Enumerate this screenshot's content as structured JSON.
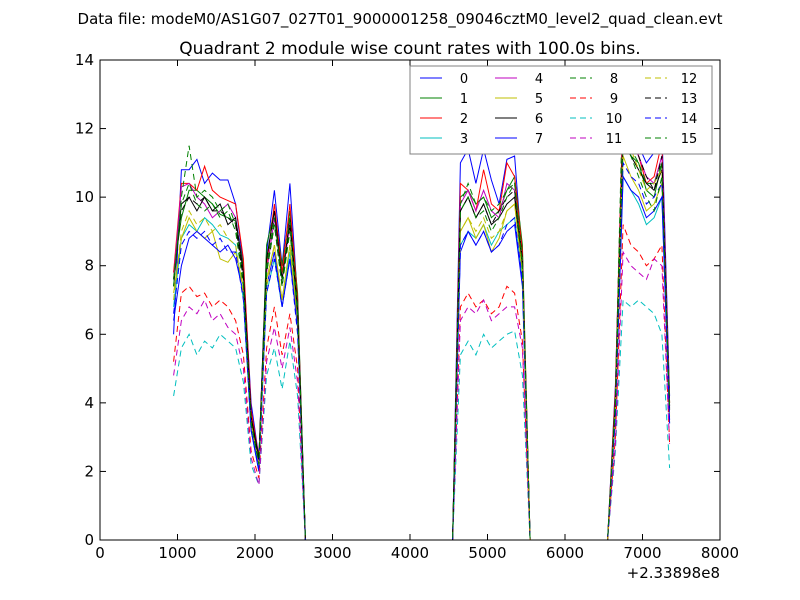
{
  "chart_data": {
    "type": "line",
    "suptitle": "Data file: modeM0/AS1G07_027T01_9000001258_09046cztM0_level2_quad_clean.evt",
    "title": "Quadrant 2 module wise count rates with 100.0s bins.",
    "xlabel": "",
    "ylabel": "",
    "x_offset_label": "+2.33898e8",
    "xlim": [
      0,
      8000
    ],
    "ylim": [
      0,
      14
    ],
    "xticks": [
      0,
      1000,
      2000,
      3000,
      4000,
      5000,
      6000,
      7000,
      8000
    ],
    "yticks": [
      0,
      2,
      4,
      6,
      8,
      10,
      12,
      14
    ],
    "grid": false,
    "legend": {
      "placement": "top-right",
      "columns": 4
    },
    "x": [
      950,
      1050,
      1150,
      1250,
      1350,
      1450,
      1550,
      1650,
      1750,
      1850,
      1950,
      2050,
      2150,
      2250,
      2350,
      2450,
      2550,
      2650,
      2750,
      4450,
      4550,
      4650,
      4750,
      4850,
      4950,
      5050,
      5150,
      5250,
      5350,
      5450,
      5550,
      5650,
      6550,
      6650,
      6750,
      6850,
      6950,
      7050,
      7150,
      7250,
      7350
    ],
    "series": [
      {
        "name": "0",
        "style": "solid",
        "color": "#0000ff",
        "values": [
          6.0,
          10.8,
          10.8,
          11.1,
          10.4,
          10.7,
          10.5,
          10.5,
          9.8,
          8.0,
          4.0,
          2.4,
          8.4,
          10.2,
          8.0,
          10.4,
          7.0,
          0,
          0,
          0,
          0,
          11.0,
          11.4,
          10.4,
          11.4,
          10.5,
          9.8,
          11.1,
          11.2,
          8.2,
          0,
          0,
          0,
          4.5,
          12.5,
          12.0,
          11.5,
          11.0,
          11.3,
          12.0,
          4.2
        ]
      },
      {
        "name": "1",
        "style": "solid",
        "color": "#008000",
        "values": [
          7.8,
          9.4,
          10.2,
          10.2,
          10.0,
          9.8,
          9.5,
          9.4,
          9.3,
          8.0,
          3.5,
          2.2,
          8.6,
          9.6,
          8.0,
          9.6,
          7.2,
          0,
          0,
          0,
          0,
          10.0,
          10.2,
          9.8,
          10.0,
          9.4,
          9.6,
          10.2,
          10.6,
          8.6,
          0,
          0,
          0,
          4.2,
          12.2,
          11.2,
          11.0,
          10.2,
          10.0,
          11.0,
          4.0
        ]
      },
      {
        "name": "2",
        "style": "solid",
        "color": "#ff0000",
        "values": [
          7.8,
          10.4,
          10.4,
          10.2,
          10.9,
          10.2,
          10.0,
          9.9,
          9.8,
          8.2,
          3.8,
          2.4,
          8.0,
          9.8,
          7.8,
          9.8,
          7.0,
          0,
          0,
          0,
          0,
          10.4,
          10.2,
          9.6,
          10.8,
          9.8,
          9.6,
          11.0,
          10.6,
          8.4,
          0,
          0,
          0,
          4.4,
          12.7,
          12.2,
          11.2,
          10.4,
          10.6,
          11.6,
          4.0
        ]
      },
      {
        "name": "3",
        "style": "solid",
        "color": "#00bfbf",
        "values": [
          6.8,
          8.8,
          9.2,
          9.0,
          9.4,
          9.2,
          8.9,
          8.8,
          8.6,
          7.0,
          3.2,
          2.0,
          7.2,
          8.2,
          6.8,
          8.4,
          6.2,
          0,
          0,
          0,
          0,
          8.6,
          9.0,
          8.8,
          9.2,
          8.6,
          9.0,
          9.2,
          9.4,
          7.6,
          0,
          0,
          0,
          3.8,
          10.6,
          10.2,
          9.8,
          9.2,
          9.4,
          10.0,
          3.4
        ]
      },
      {
        "name": "4",
        "style": "solid",
        "color": "#bf00bf",
        "values": [
          7.6,
          10.3,
          10.4,
          10.0,
          9.8,
          9.4,
          9.6,
          9.8,
          9.4,
          7.8,
          3.4,
          2.2,
          7.8,
          9.4,
          7.6,
          9.2,
          6.8,
          0,
          0,
          0,
          0,
          9.8,
          10.2,
          9.6,
          10.2,
          9.6,
          9.4,
          10.4,
          10.2,
          8.2,
          0,
          0,
          0,
          4.0,
          12.0,
          11.6,
          11.2,
          10.6,
          10.4,
          11.2,
          3.9
        ]
      },
      {
        "name": "5",
        "style": "solid",
        "color": "#bfbf00",
        "values": [
          7.2,
          8.8,
          9.4,
          9.0,
          8.8,
          9.0,
          8.2,
          8.1,
          8.4,
          7.4,
          3.4,
          2.2,
          7.6,
          8.6,
          7.0,
          8.6,
          6.4,
          0,
          0,
          0,
          0,
          9.0,
          9.4,
          8.8,
          9.2,
          8.4,
          8.8,
          9.6,
          9.8,
          7.8,
          0,
          0,
          0,
          3.8,
          11.2,
          10.6,
          10.2,
          9.6,
          9.8,
          10.4,
          3.6
        ]
      },
      {
        "name": "6",
        "style": "solid",
        "color": "#000000",
        "values": [
          7.4,
          9.8,
          10.0,
          9.6,
          10.0,
          9.6,
          9.8,
          9.2,
          9.4,
          7.8,
          3.6,
          2.4,
          8.2,
          9.6,
          7.6,
          9.4,
          6.8,
          0,
          0,
          0,
          0,
          9.6,
          10.0,
          9.4,
          9.8,
          9.2,
          9.4,
          9.8,
          10.0,
          8.0,
          0,
          0,
          0,
          4.0,
          11.6,
          11.2,
          10.8,
          10.4,
          10.2,
          10.8,
          3.8
        ]
      },
      {
        "name": "7",
        "style": "solid",
        "color": "#0000ff",
        "values": [
          6.4,
          8.0,
          8.8,
          9.0,
          8.8,
          8.6,
          8.4,
          8.6,
          8.2,
          7.2,
          3.2,
          2.0,
          7.4,
          8.4,
          6.8,
          8.2,
          6.2,
          0,
          0,
          0,
          0,
          8.4,
          9.0,
          8.6,
          9.0,
          8.4,
          8.6,
          9.0,
          9.2,
          7.4,
          0,
          0,
          0,
          3.6,
          10.6,
          10.2,
          10.0,
          9.4,
          9.6,
          10.0,
          3.4
        ]
      },
      {
        "name": "8",
        "style": "dashed",
        "color": "#008000",
        "values": [
          7.4,
          10.0,
          11.5,
          10.0,
          10.2,
          10.0,
          9.6,
          9.8,
          9.2,
          7.6,
          3.4,
          2.2,
          8.0,
          9.4,
          7.6,
          9.4,
          6.8,
          0,
          0,
          0,
          0,
          9.8,
          10.4,
          9.8,
          10.0,
          9.6,
          9.8,
          10.2,
          10.4,
          8.2,
          0,
          0,
          0,
          4.2,
          13.4,
          11.4,
          11.0,
          10.4,
          10.4,
          11.0,
          3.9
        ]
      },
      {
        "name": "9",
        "style": "dashed",
        "color": "#ff0000",
        "values": [
          5.2,
          7.2,
          7.4,
          7.1,
          7.2,
          6.8,
          7.0,
          6.8,
          6.4,
          5.4,
          2.6,
          1.8,
          5.6,
          6.8,
          5.4,
          6.6,
          5.0,
          0,
          0,
          0,
          0,
          6.8,
          7.2,
          6.8,
          7.0,
          6.6,
          6.8,
          7.4,
          7.2,
          5.8,
          0,
          0,
          0,
          3.0,
          9.2,
          8.6,
          8.4,
          8.0,
          8.2,
          8.6,
          2.8
        ]
      },
      {
        "name": "10",
        "style": "dashed",
        "color": "#00bfbf",
        "values": [
          4.2,
          5.6,
          6.0,
          5.4,
          5.8,
          5.6,
          6.0,
          5.8,
          5.6,
          4.6,
          2.2,
          1.6,
          4.8,
          5.6,
          4.4,
          5.8,
          4.2,
          0,
          0,
          0,
          0,
          5.4,
          5.8,
          5.4,
          6.0,
          5.6,
          5.8,
          6.0,
          6.1,
          4.8,
          0,
          0,
          0,
          2.6,
          7.0,
          6.8,
          7.0,
          6.8,
          6.6,
          6.0,
          2.1
        ]
      },
      {
        "name": "11",
        "style": "dashed",
        "color": "#bf00bf",
        "values": [
          4.8,
          6.4,
          6.8,
          6.6,
          7.0,
          6.4,
          6.6,
          6.2,
          6.0,
          5.0,
          2.4,
          1.6,
          5.2,
          6.2,
          5.0,
          6.2,
          4.6,
          0,
          0,
          0,
          0,
          6.4,
          6.8,
          6.6,
          7.0,
          6.4,
          6.6,
          6.8,
          6.8,
          5.6,
          0,
          0,
          0,
          2.8,
          8.4,
          8.0,
          7.8,
          7.6,
          8.2,
          8.0,
          2.8
        ]
      },
      {
        "name": "12",
        "style": "dashed",
        "color": "#bfbf00",
        "values": [
          7.0,
          9.0,
          9.6,
          9.2,
          9.4,
          9.0,
          9.2,
          8.8,
          8.6,
          7.2,
          3.4,
          2.2,
          7.4,
          8.6,
          7.0,
          8.6,
          6.4,
          0,
          0,
          0,
          0,
          9.0,
          9.4,
          9.0,
          9.4,
          8.8,
          9.0,
          9.6,
          9.8,
          7.8,
          0,
          0,
          0,
          3.8,
          11.6,
          11.4,
          10.8,
          10.2,
          10.4,
          10.8,
          3.7
        ]
      },
      {
        "name": "13",
        "style": "dashed",
        "color": "#000000",
        "values": [
          7.6,
          9.6,
          10.0,
          9.8,
          10.0,
          9.6,
          9.6,
          9.4,
          9.2,
          7.6,
          3.6,
          2.3,
          7.8,
          9.2,
          7.4,
          9.2,
          6.6,
          0,
          0,
          0,
          0,
          9.6,
          10.0,
          9.4,
          9.8,
          9.2,
          9.6,
          10.0,
          10.2,
          8.2,
          0,
          0,
          0,
          4.0,
          12.0,
          11.4,
          11.2,
          10.6,
          10.2,
          11.2,
          3.8
        ]
      },
      {
        "name": "14",
        "style": "dashed",
        "color": "#0000ff",
        "values": [
          6.6,
          8.6,
          9.0,
          8.8,
          9.0,
          8.6,
          8.8,
          8.4,
          8.4,
          7.0,
          3.2,
          2.1,
          7.2,
          8.2,
          6.8,
          8.2,
          6.0,
          0,
          0,
          0,
          0,
          8.6,
          9.0,
          8.6,
          9.0,
          8.4,
          8.6,
          9.2,
          9.4,
          7.6,
          0,
          0,
          0,
          3.6,
          11.0,
          10.6,
          10.4,
          9.8,
          10.0,
          10.4,
          3.5
        ]
      },
      {
        "name": "15",
        "style": "dashed",
        "color": "#008000",
        "values": [
          7.6,
          9.8,
          10.4,
          9.8,
          9.6,
          9.8,
          9.4,
          9.6,
          9.0,
          7.4,
          3.4,
          2.2,
          7.8,
          9.2,
          7.4,
          9.0,
          6.6,
          0,
          0,
          0,
          0,
          9.6,
          10.0,
          9.4,
          9.6,
          9.0,
          9.4,
          10.0,
          10.4,
          8.0,
          0,
          0,
          0,
          3.9,
          11.8,
          11.2,
          10.6,
          10.0,
          9.6,
          10.6,
          3.8
        ]
      }
    ]
  }
}
